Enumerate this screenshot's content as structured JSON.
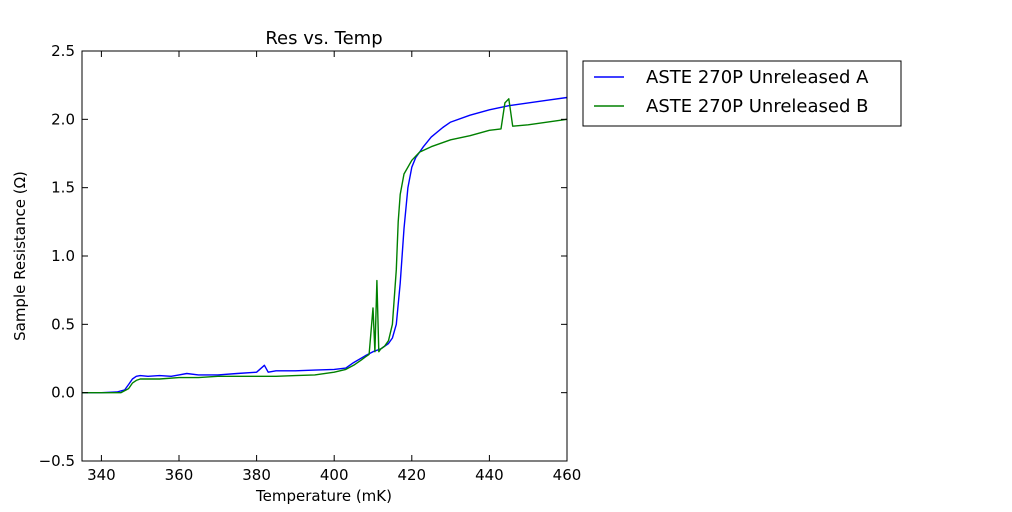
{
  "chart_data": {
    "type": "line",
    "title": "Res vs. Temp",
    "xlabel": "Temperature (mK)",
    "ylabel": "Sample Resistance (Ω)",
    "xlim": [
      335,
      460
    ],
    "ylim": [
      -0.5,
      2.5
    ],
    "xticks": [
      340,
      360,
      380,
      400,
      420,
      440,
      460
    ],
    "yticks": [
      -0.5,
      0.0,
      0.5,
      1.0,
      1.5,
      2.0,
      2.5
    ],
    "xtick_labels": [
      "340",
      "360",
      "380",
      "400",
      "420",
      "440",
      "460"
    ],
    "ytick_labels": [
      "−0.5",
      "0.0",
      "0.5",
      "1.0",
      "1.5",
      "2.0",
      "2.5"
    ],
    "grid": false,
    "legend_position": "outside-top-right",
    "series": [
      {
        "name": "ASTE 270P Unreleased A",
        "color": "#0000ff",
        "x": [
          335,
          340,
          344,
          346,
          347,
          348,
          349,
          350,
          352,
          355,
          358,
          360,
          362,
          365,
          370,
          375,
          380,
          382,
          383,
          385,
          390,
          395,
          400,
          403,
          405,
          408,
          410,
          412,
          414,
          415,
          416,
          417,
          418,
          419,
          420,
          421,
          422,
          423,
          425,
          428,
          430,
          435,
          440,
          445,
          450,
          455,
          460
        ],
        "y": [
          0.0,
          0.0,
          0.005,
          0.02,
          0.06,
          0.1,
          0.12,
          0.125,
          0.12,
          0.125,
          0.12,
          0.13,
          0.14,
          0.13,
          0.13,
          0.14,
          0.15,
          0.2,
          0.15,
          0.16,
          0.16,
          0.165,
          0.17,
          0.18,
          0.22,
          0.27,
          0.3,
          0.32,
          0.36,
          0.4,
          0.5,
          0.8,
          1.2,
          1.5,
          1.65,
          1.72,
          1.76,
          1.8,
          1.87,
          1.94,
          1.98,
          2.03,
          2.07,
          2.1,
          2.12,
          2.14,
          2.16
        ]
      },
      {
        "name": "ASTE 270P Unreleased B",
        "color": "#008000",
        "x": [
          335,
          340,
          345,
          347,
          348,
          349,
          350,
          355,
          360,
          365,
          370,
          375,
          380,
          385,
          390,
          395,
          400,
          403,
          405,
          407,
          408,
          409,
          410,
          410.5,
          411,
          411.5,
          412,
          413,
          414,
          415,
          416,
          416.5,
          417,
          418,
          420,
          422,
          425,
          430,
          435,
          440,
          443,
          444,
          445,
          446,
          450,
          455,
          460
        ],
        "y": [
          0.0,
          0.0,
          0.0,
          0.03,
          0.07,
          0.09,
          0.1,
          0.1,
          0.11,
          0.11,
          0.12,
          0.12,
          0.12,
          0.12,
          0.125,
          0.13,
          0.15,
          0.17,
          0.2,
          0.24,
          0.26,
          0.28,
          0.62,
          0.3,
          0.82,
          0.3,
          0.32,
          0.34,
          0.38,
          0.5,
          0.9,
          1.25,
          1.45,
          1.6,
          1.7,
          1.76,
          1.8,
          1.85,
          1.88,
          1.92,
          1.93,
          2.12,
          2.15,
          1.95,
          1.96,
          1.98,
          2.0
        ]
      }
    ]
  }
}
